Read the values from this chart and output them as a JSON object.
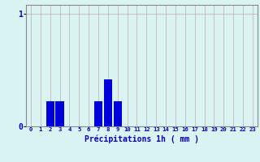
{
  "x_labels": [
    "0",
    "1",
    "2",
    "3",
    "4",
    "5",
    "6",
    "7",
    "8",
    "9",
    "10",
    "11",
    "12",
    "13",
    "14",
    "15",
    "16",
    "17",
    "18",
    "19",
    "20",
    "21",
    "22",
    "23"
  ],
  "values": [
    0,
    0,
    0.22,
    0.22,
    0,
    0,
    0,
    0.22,
    0.42,
    0.22,
    0,
    0,
    0,
    0,
    0,
    0,
    0,
    0,
    0,
    0,
    0,
    0,
    0,
    0
  ],
  "bar_color": "#0000dd",
  "background_color": "#daf4f4",
  "grid_color": "#c8a8a8",
  "axis_color": "#888888",
  "xlabel": "Précipitations 1h ( mm )",
  "xlabel_color": "#0000cc",
  "tick_color": "#0000cc",
  "ytick_labels": [
    "0",
    "1"
  ],
  "ytick_values": [
    0,
    1
  ],
  "ylim": [
    0,
    1.08
  ],
  "xlim": [
    -0.5,
    23.5
  ]
}
